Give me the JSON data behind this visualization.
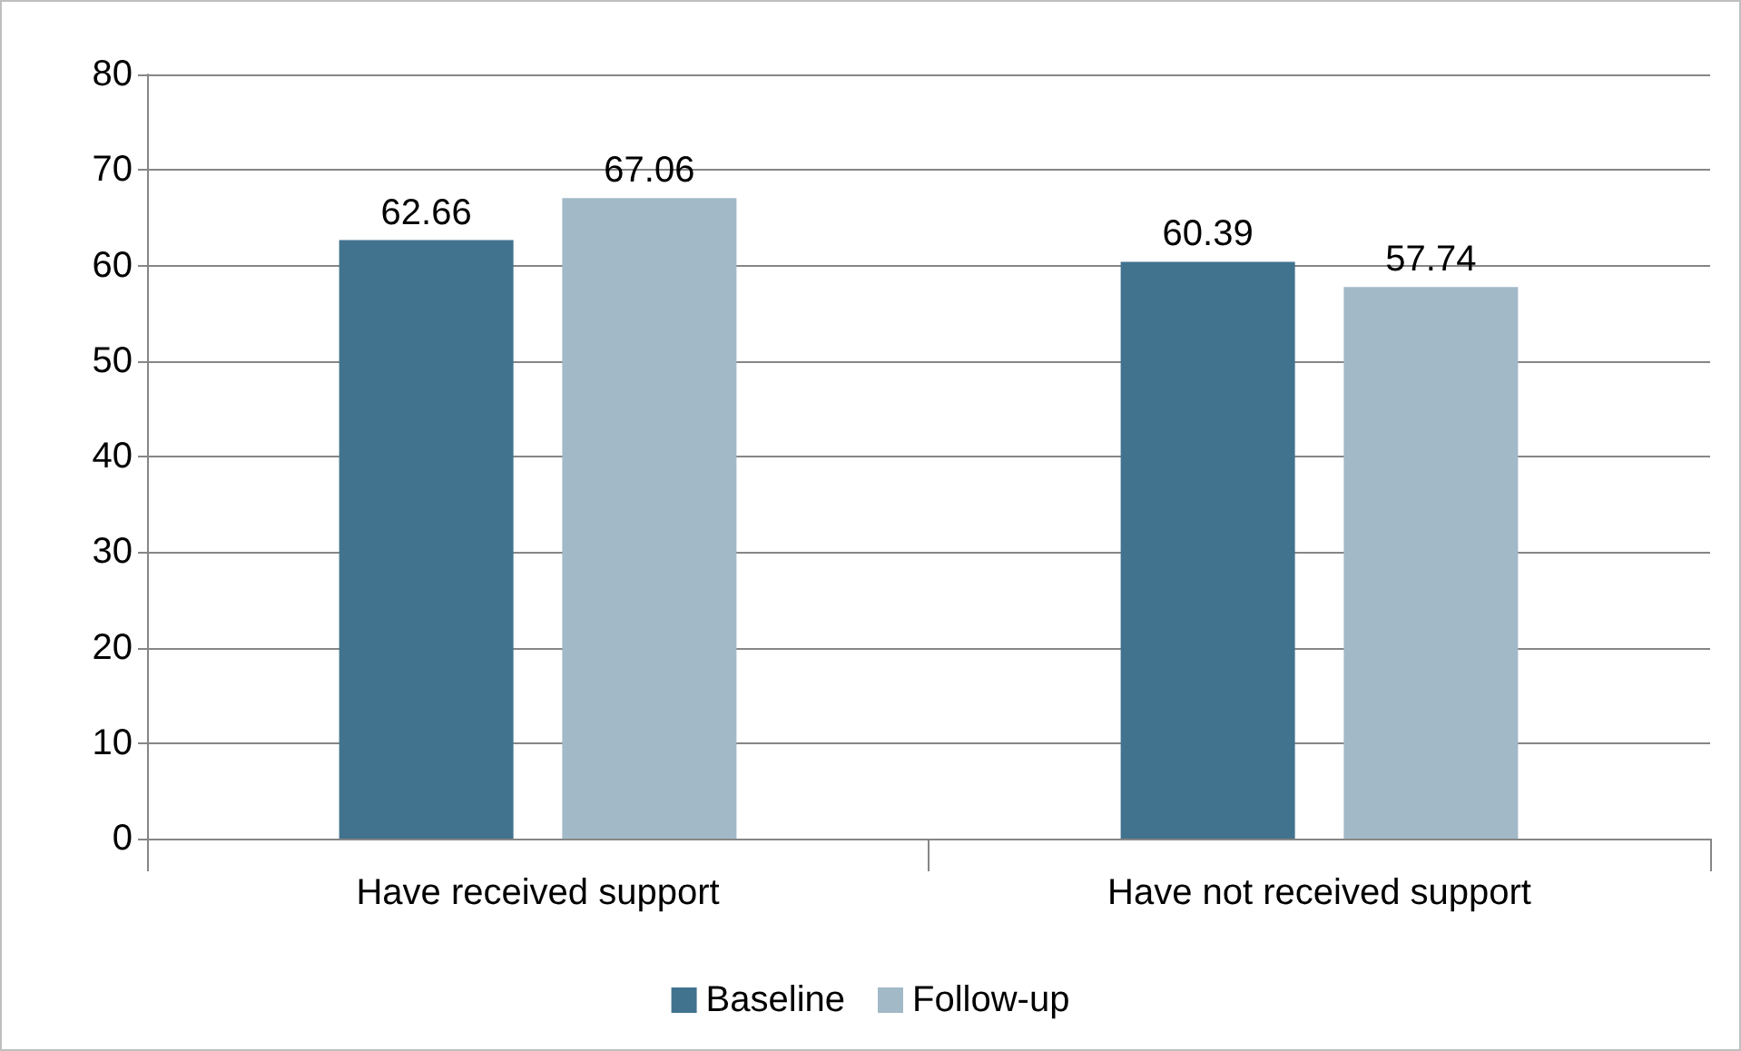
{
  "chart_data": {
    "type": "bar",
    "categories": [
      "Have received support",
      "Have not received support"
    ],
    "series": [
      {
        "name": "Baseline",
        "color": "#41738f",
        "values": [
          62.66,
          60.39
        ]
      },
      {
        "name": "Follow-up",
        "color": "#a2b9c8",
        "values": [
          67.06,
          57.74
        ]
      }
    ],
    "ylim": [
      0,
      80
    ],
    "yticks": [
      0,
      10,
      20,
      30,
      40,
      50,
      60,
      70,
      80
    ],
    "grid": "y",
    "legend": "bottom",
    "data_labels": true
  }
}
